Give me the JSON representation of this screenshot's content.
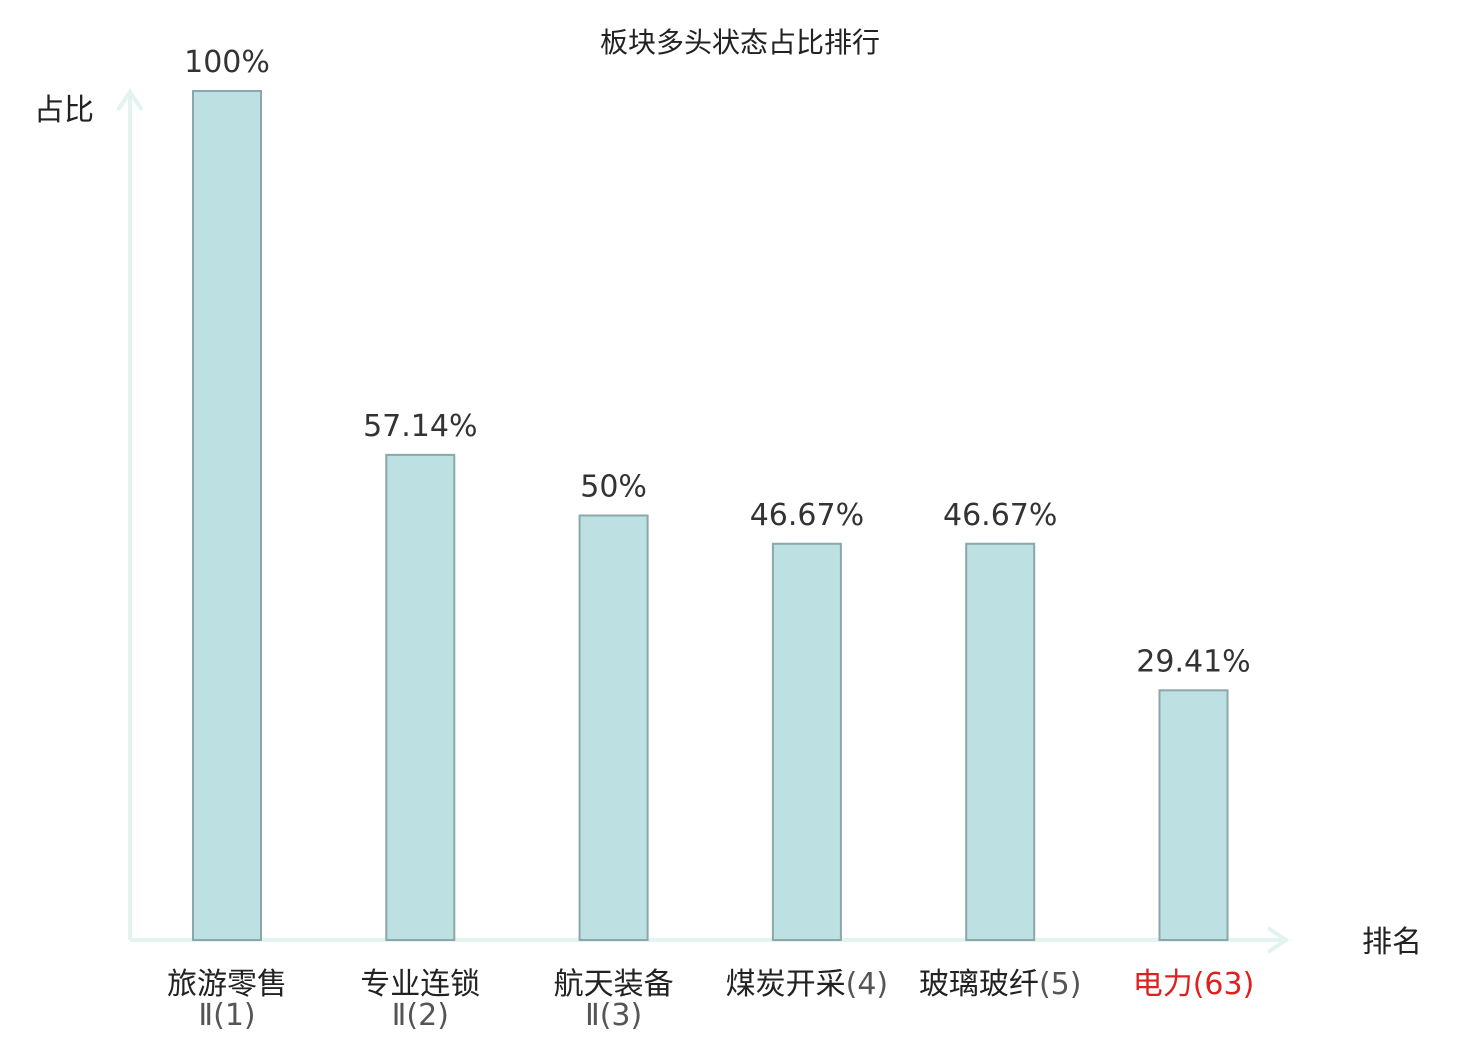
{
  "chart_data": {
    "type": "bar",
    "title": "板块多头状态占比排行",
    "ylabel": "占比",
    "xlabel": "排名",
    "ylim": [
      0,
      100
    ],
    "grid": false,
    "categories": [
      {
        "name": "旅游零售",
        "rank": "Ⅱ(1)"
      },
      {
        "name": "专业连锁",
        "rank": "Ⅱ(2)"
      },
      {
        "name": "航天装备",
        "rank": "Ⅱ(3)"
      },
      {
        "name": "煤炭开采",
        "rank": "(4)"
      },
      {
        "name": "玻璃玻纤",
        "rank": "(5)"
      },
      {
        "name": "电力",
        "rank": "(63)",
        "highlight": true
      }
    ],
    "values": [
      100,
      57.14,
      50,
      46.67,
      46.67,
      29.41
    ],
    "value_labels": [
      "100%",
      "57.14%",
      "50%",
      "46.67%",
      "46.67%",
      "29.41%"
    ],
    "colors": {
      "bar_fill": "#bde0e2",
      "bar_stroke": "#8aa7a9",
      "axis": "#e2f3f0",
      "highlight_text": "#e02020"
    }
  }
}
